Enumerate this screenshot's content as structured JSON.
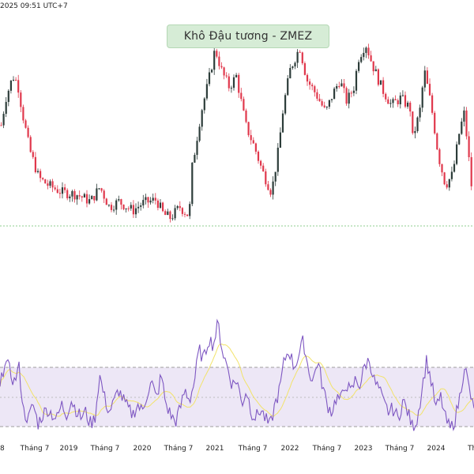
{
  "header": {
    "timestamp": "2025 09:51 UTC+7",
    "title": "Khô Đậu tương - ZMEZ"
  },
  "colors": {
    "up": "#2d3d3a",
    "down": "#e0384c",
    "rsi_line": "#7e57c2",
    "rsi_ma": "#f2e36a",
    "rsi_band": "#ede7f6",
    "support_line": "#8fce8f"
  },
  "chart_data": [
    {
      "type": "candlestick",
      "title": "Khô Đậu tương - ZMEZ",
      "price_shape": [
        [
          0.0,
          0.55
        ],
        [
          0.01,
          0.7
        ],
        [
          0.025,
          0.82
        ],
        [
          0.035,
          0.78
        ],
        [
          0.045,
          0.62
        ],
        [
          0.06,
          0.42
        ],
        [
          0.08,
          0.26
        ],
        [
          0.1,
          0.22
        ],
        [
          0.13,
          0.18
        ],
        [
          0.16,
          0.17
        ],
        [
          0.19,
          0.13
        ],
        [
          0.21,
          0.21
        ],
        [
          0.23,
          0.1
        ],
        [
          0.25,
          0.13
        ],
        [
          0.28,
          0.08
        ],
        [
          0.3,
          0.12
        ],
        [
          0.33,
          0.14
        ],
        [
          0.345,
          0.06
        ],
        [
          0.36,
          0.04
        ],
        [
          0.38,
          0.1
        ],
        [
          0.4,
          0.05
        ],
        [
          0.405,
          0.3
        ],
        [
          0.425,
          0.62
        ],
        [
          0.44,
          0.78
        ],
        [
          0.455,
          0.97
        ],
        [
          0.47,
          0.84
        ],
        [
          0.485,
          0.76
        ],
        [
          0.5,
          0.82
        ],
        [
          0.52,
          0.55
        ],
        [
          0.54,
          0.42
        ],
        [
          0.555,
          0.3
        ],
        [
          0.575,
          0.18
        ],
        [
          0.59,
          0.42
        ],
        [
          0.6,
          0.65
        ],
        [
          0.615,
          0.86
        ],
        [
          0.635,
          0.98
        ],
        [
          0.65,
          0.8
        ],
        [
          0.67,
          0.72
        ],
        [
          0.69,
          0.62
        ],
        [
          0.705,
          0.72
        ],
        [
          0.72,
          0.8
        ],
        [
          0.735,
          0.68
        ],
        [
          0.75,
          0.76
        ],
        [
          0.76,
          0.92
        ],
        [
          0.775,
          1.0
        ],
        [
          0.79,
          0.88
        ],
        [
          0.81,
          0.75
        ],
        [
          0.83,
          0.66
        ],
        [
          0.85,
          0.7
        ],
        [
          0.87,
          0.64
        ],
        [
          0.875,
          0.48
        ],
        [
          0.89,
          0.62
        ],
        [
          0.9,
          0.85
        ],
        [
          0.915,
          0.65
        ],
        [
          0.93,
          0.38
        ],
        [
          0.945,
          0.22
        ],
        [
          0.96,
          0.28
        ],
        [
          0.975,
          0.52
        ],
        [
          0.985,
          0.62
        ],
        [
          1.0,
          0.22
        ]
      ],
      "support_level": 0.0,
      "rsi": {
        "band_upper": 70,
        "band_lower": 30,
        "rsi_shape": [
          [
            0.0,
            55
          ],
          [
            0.01,
            75
          ],
          [
            0.02,
            68
          ],
          [
            0.03,
            60
          ],
          [
            0.04,
            70
          ],
          [
            0.05,
            40
          ],
          [
            0.06,
            35
          ],
          [
            0.07,
            45
          ],
          [
            0.08,
            32
          ],
          [
            0.09,
            38
          ],
          [
            0.1,
            42
          ],
          [
            0.12,
            35
          ],
          [
            0.13,
            45
          ],
          [
            0.14,
            38
          ],
          [
            0.15,
            48
          ],
          [
            0.16,
            42
          ],
          [
            0.17,
            36
          ],
          [
            0.18,
            40
          ],
          [
            0.19,
            32
          ],
          [
            0.2,
            35
          ],
          [
            0.21,
            65
          ],
          [
            0.22,
            50
          ],
          [
            0.23,
            40
          ],
          [
            0.24,
            46
          ],
          [
            0.25,
            55
          ],
          [
            0.26,
            48
          ],
          [
            0.27,
            42
          ],
          [
            0.28,
            38
          ],
          [
            0.29,
            45
          ],
          [
            0.3,
            40
          ],
          [
            0.31,
            52
          ],
          [
            0.32,
            60
          ],
          [
            0.33,
            48
          ],
          [
            0.34,
            65
          ],
          [
            0.35,
            45
          ],
          [
            0.36,
            38
          ],
          [
            0.37,
            33
          ],
          [
            0.38,
            42
          ],
          [
            0.39,
            55
          ],
          [
            0.4,
            48
          ],
          [
            0.41,
            60
          ],
          [
            0.42,
            82
          ],
          [
            0.43,
            75
          ],
          [
            0.44,
            90
          ],
          [
            0.45,
            85
          ],
          [
            0.46,
            100
          ],
          [
            0.47,
            80
          ],
          [
            0.48,
            70
          ],
          [
            0.49,
            58
          ],
          [
            0.5,
            62
          ],
          [
            0.51,
            45
          ],
          [
            0.52,
            55
          ],
          [
            0.53,
            40
          ],
          [
            0.54,
            36
          ],
          [
            0.55,
            42
          ],
          [
            0.56,
            35
          ],
          [
            0.57,
            30
          ],
          [
            0.58,
            45
          ],
          [
            0.59,
            55
          ],
          [
            0.6,
            75
          ],
          [
            0.61,
            82
          ],
          [
            0.62,
            70
          ],
          [
            0.63,
            78
          ],
          [
            0.64,
            88
          ],
          [
            0.65,
            70
          ],
          [
            0.66,
            60
          ],
          [
            0.67,
            75
          ],
          [
            0.68,
            58
          ],
          [
            0.69,
            45
          ],
          [
            0.7,
            40
          ],
          [
            0.71,
            50
          ],
          [
            0.72,
            48
          ],
          [
            0.73,
            60
          ],
          [
            0.74,
            52
          ],
          [
            0.75,
            62
          ],
          [
            0.76,
            58
          ],
          [
            0.77,
            72
          ],
          [
            0.78,
            75
          ],
          [
            0.79,
            60
          ],
          [
            0.8,
            55
          ],
          [
            0.81,
            45
          ],
          [
            0.82,
            40
          ],
          [
            0.83,
            42
          ],
          [
            0.84,
            35
          ],
          [
            0.85,
            48
          ],
          [
            0.86,
            40
          ],
          [
            0.87,
            30
          ],
          [
            0.88,
            35
          ],
          [
            0.89,
            55
          ],
          [
            0.9,
            75
          ],
          [
            0.91,
            60
          ],
          [
            0.92,
            42
          ],
          [
            0.93,
            50
          ],
          [
            0.94,
            35
          ],
          [
            0.95,
            28
          ],
          [
            0.96,
            35
          ],
          [
            0.97,
            50
          ],
          [
            0.98,
            72
          ],
          [
            0.99,
            55
          ],
          [
            1.0,
            40
          ]
        ]
      },
      "x_ticks": [
        "8",
        "Tháng 7",
        "2019",
        "Tháng 7",
        "2020",
        "Tháng 7",
        "2021",
        "Tháng 7",
        "2022",
        "Tháng 7",
        "2023",
        "Tháng 7",
        "2024",
        "Tháng"
      ]
    }
  ]
}
